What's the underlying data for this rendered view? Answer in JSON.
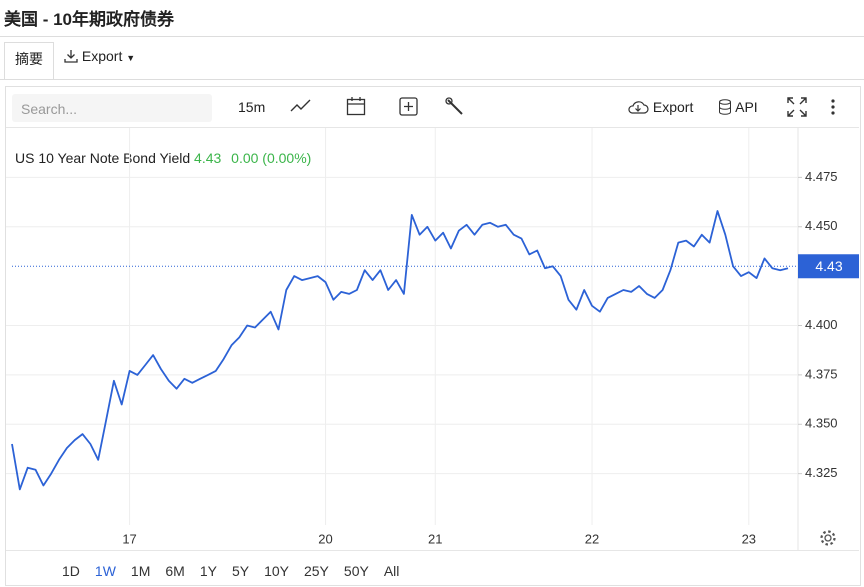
{
  "header": {
    "title": "美国 - 10年期政府债券"
  },
  "tabs": [
    "摘要",
    "Export"
  ],
  "toolbar": {
    "search_placeholder": "Search...",
    "interval": "15m",
    "export": "Export",
    "api": "API"
  },
  "range_buttons": {
    "items": [
      "1D",
      "1W",
      "1M",
      "6M",
      "1Y",
      "5Y",
      "10Y",
      "25Y",
      "50Y",
      "All"
    ],
    "active": "1W"
  },
  "chart_data": {
    "type": "line",
    "series": [
      {
        "name": "US 10 Year Note Bond Yield",
        "color": "#2c62d6",
        "values": [
          4.34,
          4.317,
          4.328,
          4.327,
          4.319,
          4.325,
          4.332,
          4.338,
          4.342,
          4.345,
          4.34,
          4.332,
          4.352,
          4.372,
          4.36,
          4.377,
          4.375,
          4.38,
          4.385,
          4.378,
          4.372,
          4.368,
          4.373,
          4.371,
          4.373,
          4.375,
          4.377,
          4.383,
          4.39,
          4.394,
          4.4,
          4.399,
          4.403,
          4.407,
          4.398,
          4.418,
          4.425,
          4.423,
          4.424,
          4.425,
          4.422,
          4.413,
          4.417,
          4.416,
          4.418,
          4.428,
          4.423,
          4.428,
          4.418,
          4.423,
          4.416,
          4.456,
          4.446,
          4.45,
          4.443,
          4.447,
          4.439,
          4.448,
          4.451,
          4.446,
          4.451,
          4.452,
          4.45,
          4.451,
          4.446,
          4.444,
          4.436,
          4.438,
          4.429,
          4.43,
          4.425,
          4.413,
          4.408,
          4.418,
          4.41,
          4.407,
          4.414,
          4.416,
          4.418,
          4.417,
          4.42,
          4.416,
          4.414,
          4.418,
          4.428,
          4.442,
          4.443,
          4.44,
          4.446,
          4.442,
          4.458,
          4.446,
          4.43,
          4.425,
          4.427,
          4.424,
          4.434,
          4.429,
          4.428,
          4.429
        ]
      }
    ],
    "categories": [
      null,
      null,
      null,
      null,
      null,
      null,
      null,
      null,
      null,
      null,
      null,
      null,
      null,
      null,
      null,
      "17",
      null,
      null,
      null,
      null,
      null,
      null,
      null,
      null,
      null,
      null,
      null,
      null,
      null,
      null,
      null,
      null,
      null,
      null,
      null,
      null,
      null,
      null,
      null,
      null,
      "20",
      null,
      null,
      null,
      null,
      null,
      null,
      null,
      null,
      null,
      null,
      null,
      null,
      null,
      "21",
      null,
      null,
      null,
      null,
      null,
      null,
      null,
      null,
      null,
      null,
      null,
      null,
      null,
      null,
      null,
      null,
      null,
      null,
      null,
      "22",
      null,
      null,
      null,
      null,
      null,
      null,
      null,
      null,
      null,
      null,
      null,
      null,
      null,
      null,
      null,
      null,
      null,
      null,
      null,
      "23",
      null,
      null,
      null,
      null,
      null
    ],
    "last_price": 4.43,
    "change": "0.00 (0.00%)",
    "ylim": [
      4.299,
      4.5
    ],
    "yticks": [
      4.475,
      {
        "value": 4.45,
        "label": "4.450"
      },
      {
        "value": 4.4,
        "label": "4.400"
      },
      4.375,
      {
        "value": 4.35,
        "label": "4.350"
      },
      4.325
    ],
    "grid": true
  }
}
